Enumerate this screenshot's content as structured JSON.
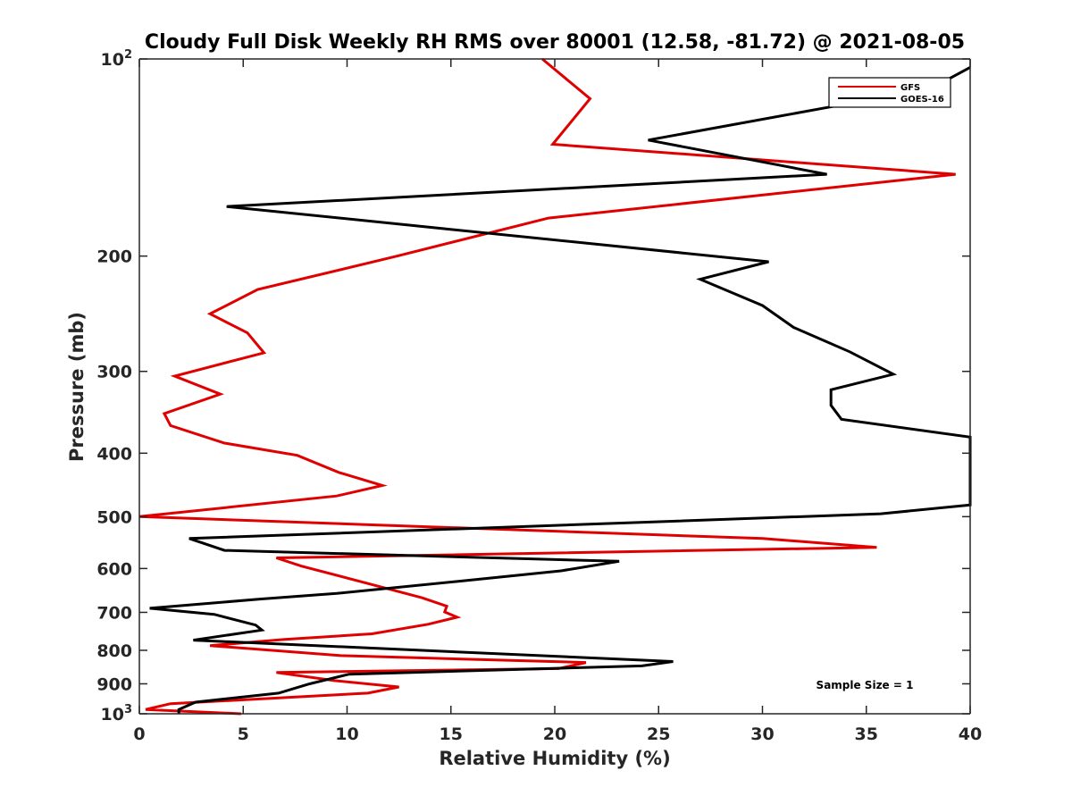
{
  "chart_data": {
    "type": "line",
    "title": "Cloudy Full Disk Weekly RH RMS over 80001 (12.58, -81.72) @ 2021-08-05",
    "xlabel": "Relative Humidity (%)",
    "ylabel": "Pressure (mb)",
    "xlim": [
      0,
      40
    ],
    "ylim": [
      100,
      1000
    ],
    "yscale": "log",
    "yreversed": true,
    "grid": false,
    "legend_position": "top-right",
    "x_ticks": [
      0,
      5,
      10,
      15,
      20,
      25,
      30,
      35,
      40
    ],
    "y_ticks": [
      {
        "value": 100,
        "label": "10",
        "sup": "2"
      },
      {
        "value": 200,
        "label": "200",
        "sup": ""
      },
      {
        "value": 300,
        "label": "300",
        "sup": ""
      },
      {
        "value": 400,
        "label": "400",
        "sup": ""
      },
      {
        "value": 500,
        "label": "500",
        "sup": ""
      },
      {
        "value": 600,
        "label": "600",
        "sup": ""
      },
      {
        "value": 700,
        "label": "700",
        "sup": ""
      },
      {
        "value": 800,
        "label": "800",
        "sup": ""
      },
      {
        "value": 900,
        "label": "900",
        "sup": ""
      },
      {
        "value": 1000,
        "label": "10",
        "sup": "3"
      }
    ],
    "series": [
      {
        "name": "GFS",
        "color": "#e00000",
        "points": [
          [
            19.4,
            100
          ],
          [
            21.7,
            115
          ],
          [
            19.9,
            135
          ],
          [
            39.3,
            150
          ],
          [
            19.7,
            175
          ],
          [
            12.4,
            200
          ],
          [
            5.7,
            225
          ],
          [
            3.4,
            245
          ],
          [
            5.2,
            262
          ],
          [
            6.0,
            281
          ],
          [
            1.7,
            305
          ],
          [
            3.9,
            325
          ],
          [
            1.2,
            348
          ],
          [
            1.5,
            363
          ],
          [
            4.1,
            386
          ],
          [
            7.6,
            403
          ],
          [
            9.6,
            428
          ],
          [
            11.7,
            448
          ],
          [
            9.5,
            465
          ],
          [
            0.0,
            500
          ],
          [
            30.0,
            540
          ],
          [
            35.5,
            557
          ],
          [
            6.6,
            578
          ],
          [
            7.8,
            595
          ],
          [
            10.8,
            630
          ],
          [
            13.6,
            665
          ],
          [
            14.8,
            685
          ],
          [
            14.7,
            699
          ],
          [
            15.3,
            712
          ],
          [
            13.9,
            730
          ],
          [
            11.2,
            755
          ],
          [
            7.0,
            770
          ],
          [
            3.4,
            787
          ],
          [
            9.7,
            815
          ],
          [
            21.5,
            835
          ],
          [
            20.2,
            853
          ],
          [
            6.6,
            865
          ],
          [
            9.4,
            890
          ],
          [
            12.5,
            910
          ],
          [
            11.0,
            930
          ],
          [
            1.5,
            965
          ],
          [
            0.3,
            985
          ],
          [
            4.9,
            1000
          ]
        ]
      },
      {
        "name": "GOES-16",
        "color": "#000000",
        "points": [
          [
            40.0,
            103
          ],
          [
            38.8,
            108
          ],
          [
            33.5,
            118
          ],
          [
            24.5,
            133
          ],
          [
            33.1,
            150
          ],
          [
            4.2,
            168
          ],
          [
            30.3,
            204
          ],
          [
            27.0,
            217
          ],
          [
            30.0,
            238
          ],
          [
            31.5,
            257
          ],
          [
            34.2,
            280
          ],
          [
            36.3,
            303
          ],
          [
            33.3,
            320
          ],
          [
            33.3,
            338
          ],
          [
            33.8,
            355
          ],
          [
            40.0,
            378
          ],
          [
            40.0,
            480
          ],
          [
            35.7,
            495
          ],
          [
            2.4,
            540
          ],
          [
            4.1,
            563
          ],
          [
            23.1,
            585
          ],
          [
            20.3,
            605
          ],
          [
            15.3,
            628
          ],
          [
            9.5,
            655
          ],
          [
            5.8,
            668
          ],
          [
            0.5,
            690
          ],
          [
            3.6,
            705
          ],
          [
            5.6,
            732
          ],
          [
            5.9,
            745
          ],
          [
            2.6,
            772
          ],
          [
            25.7,
            832
          ],
          [
            24.2,
            845
          ],
          [
            10.1,
            870
          ],
          [
            8.2,
            900
          ],
          [
            6.7,
            930
          ],
          [
            2.7,
            960
          ],
          [
            1.9,
            985
          ],
          [
            1.9,
            1000
          ]
        ]
      }
    ],
    "annotation": "Sample Size = 1"
  }
}
